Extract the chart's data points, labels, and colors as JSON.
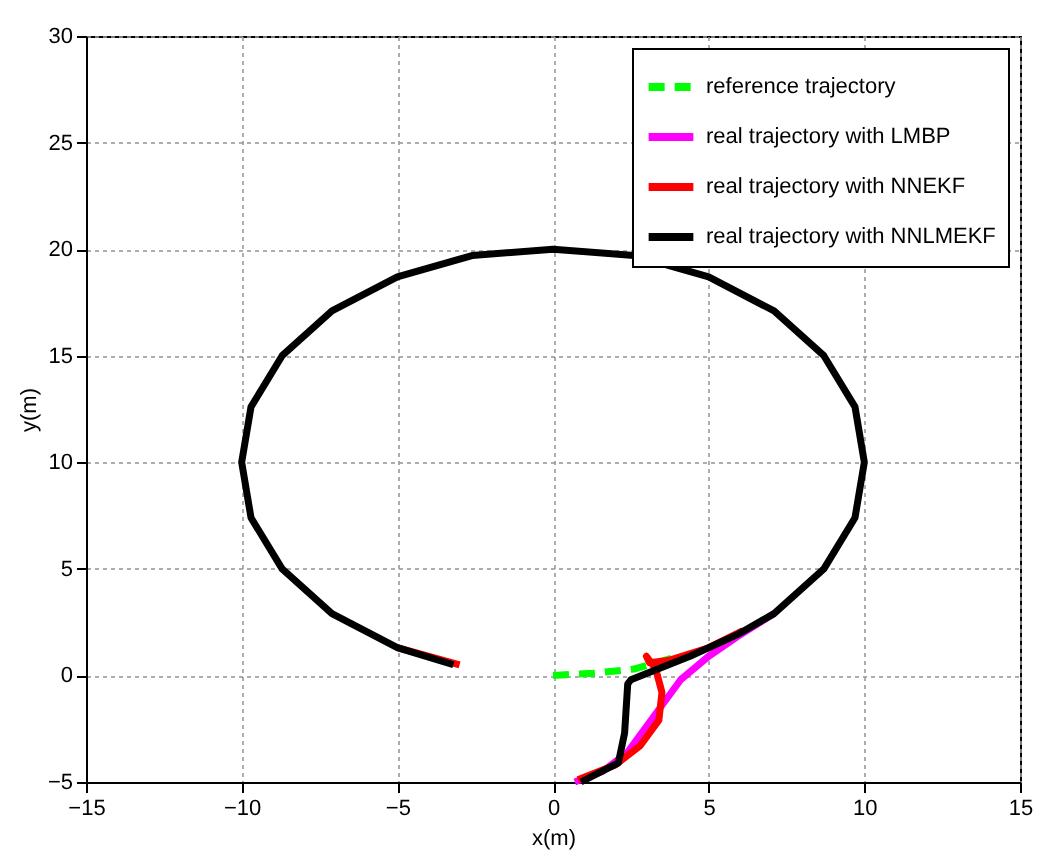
{
  "chart_data": {
    "type": "line",
    "xlabel": "x(m)",
    "ylabel": "y(m)",
    "xlim": [
      -15,
      15
    ],
    "xticks": [
      -15,
      -10,
      -5,
      0,
      5,
      10,
      15
    ],
    "ylim": [
      -5,
      30
    ],
    "yticks": [
      -5,
      0,
      5,
      10,
      15,
      20,
      25,
      30
    ],
    "grid": true,
    "legend": "top right",
    "series": [
      {
        "name": "reference trajectory",
        "color": "#00ff00",
        "line_style": "dashed",
        "x": [
          0,
          1.3,
          2.6,
          3.8
        ],
        "values": [
          0,
          0.1,
          0.3,
          0.8
        ]
      },
      {
        "name": "real trajectory with LMBP",
        "color": "#ff00ff",
        "line_style": "solid",
        "x": [
          0.7,
          1.6,
          2.4,
          3.3,
          4.1,
          5,
          5.9,
          7.1
        ],
        "values": [
          -5,
          -4.5,
          -3.6,
          -1.8,
          -0.2,
          0.9,
          1.8,
          2.9
        ]
      },
      {
        "name": "real trajectory with NNEKF",
        "color": "#ff0000",
        "line_style": "solid",
        "x": [
          0.8,
          2,
          2.8,
          3.4,
          3.5,
          3.3,
          3,
          3.1,
          3.7,
          5,
          6.1,
          null,
          -5,
          -3
        ],
        "values": [
          -4.9,
          -4.2,
          -3.3,
          -2.1,
          -0.8,
          0.3,
          0.9,
          0.6,
          0.7,
          1.3,
          2.1,
          null,
          1.3,
          0.5
        ]
      },
      {
        "name": "real trajectory with NNLMEKF",
        "color": "#000000",
        "line_style": "solid",
        "x": [
          0.9,
          2.1,
          2.3,
          2.4,
          2.5,
          4.4,
          5.9,
          7.1,
          8.7,
          9.7,
          10,
          9.7,
          8.7,
          7.1,
          5,
          2.6,
          0,
          -2.6,
          -5,
          -7.1,
          -8.7,
          -9.7,
          -10,
          -9.7,
          -8.7,
          -7.1,
          -5,
          -3.2
        ],
        "values": [
          -5,
          -4.1,
          -2.7,
          -0.4,
          -0.2,
          0.9,
          1.9,
          2.9,
          5,
          7.4,
          10,
          12.6,
          15,
          17.1,
          18.7,
          19.7,
          20,
          19.7,
          18.7,
          17.1,
          15,
          12.6,
          10,
          7.4,
          5,
          2.9,
          1.3,
          0.5
        ]
      }
    ]
  }
}
